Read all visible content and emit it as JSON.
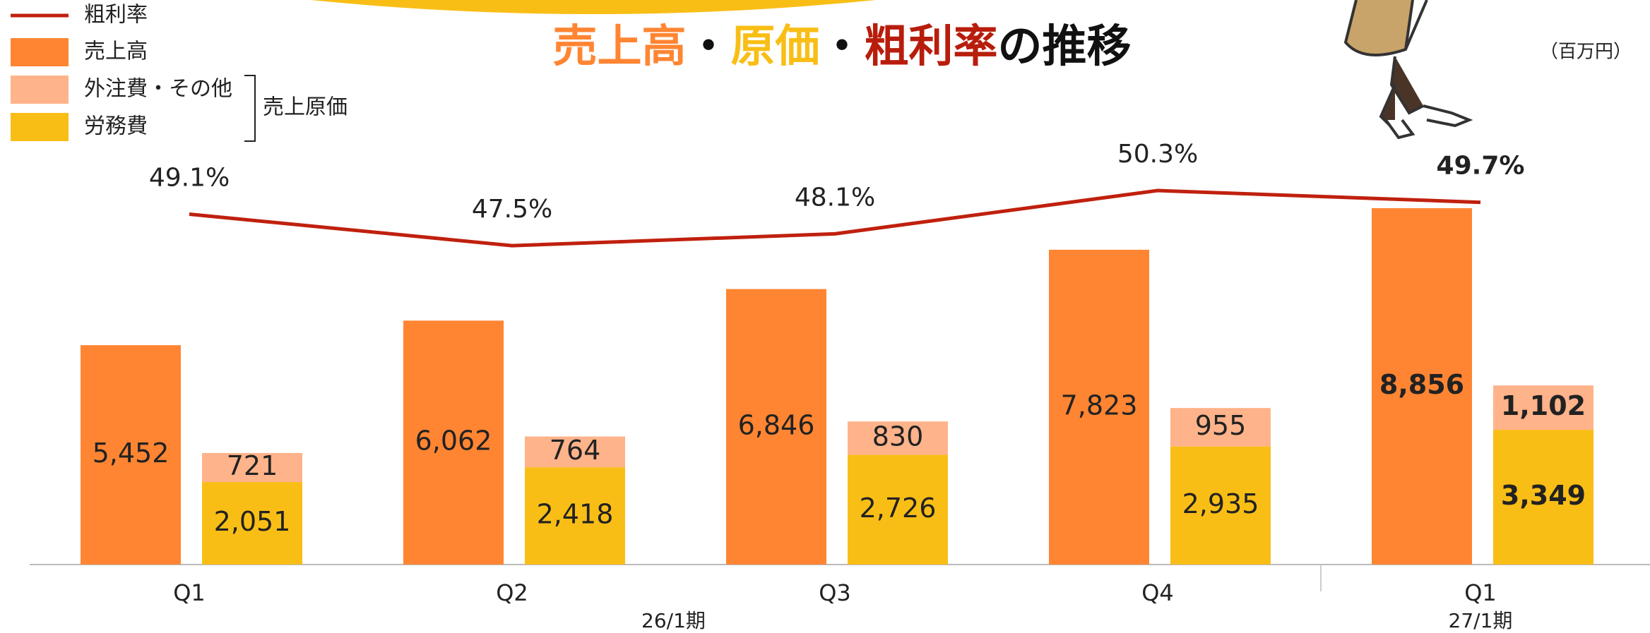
{
  "chart_data": {
    "type": "bar",
    "title_parts": [
      {
        "text": "売上高",
        "color": "#ff8533"
      },
      {
        "text": "・",
        "color": "#111111"
      },
      {
        "text": "原価",
        "color": "#f9be16"
      },
      {
        "text": "・",
        "color": "#111111"
      },
      {
        "text": "粗利率",
        "color": "#b81d0c"
      },
      {
        "text": "の推移",
        "color": "#111111"
      }
    ],
    "unit": "（百万円）",
    "categories": [
      "Q1",
      "Q2",
      "Q3",
      "Q4",
      "Q1"
    ],
    "periods": [
      "26/1期",
      "27/1期"
    ],
    "cost_group_label": "売上原価",
    "series": [
      {
        "name": "粗利率",
        "type": "line",
        "color": "#c0200e",
        "values": [
          49.1,
          47.5,
          48.1,
          50.3,
          49.7
        ],
        "value_labels": [
          "49.1%",
          "47.5%",
          "48.1%",
          "50.3%",
          "49.7%"
        ]
      },
      {
        "name": "売上高",
        "type": "bar",
        "color": "#ff8533",
        "values": [
          5452,
          6062,
          6846,
          7823,
          8856
        ],
        "value_labels": [
          "5,452",
          "6,062",
          "6,846",
          "7,823",
          "8,856"
        ]
      },
      {
        "name": "外注費・その他",
        "type": "bar",
        "color": "#ffb38a",
        "values": [
          721,
          764,
          830,
          955,
          1102
        ],
        "value_labels": [
          "721",
          "764",
          "830",
          "955",
          "1,102"
        ]
      },
      {
        "name": "労務費",
        "type": "bar",
        "color": "#f9be16",
        "values": [
          2051,
          2418,
          2726,
          2935,
          3349
        ],
        "value_labels": [
          "2,051",
          "2,418",
          "2,726",
          "2,935",
          "3,349"
        ]
      }
    ]
  }
}
